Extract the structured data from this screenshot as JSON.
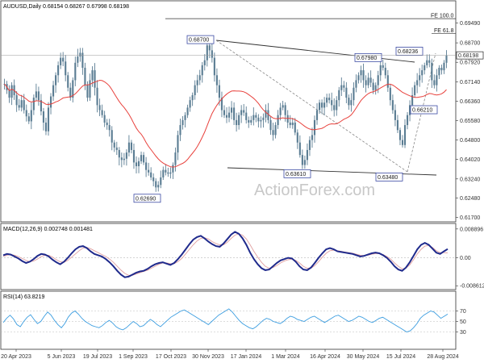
{
  "chart_data": [
    {
      "type": "candlestick",
      "title": "AUDUSD,Daily",
      "ohlc_text": "0.68154 0.68267 0.67998 0.68198",
      "current_price": 0.68198,
      "ylim": [
        0.6155,
        0.7016
      ],
      "yticks": [
        "0.69490",
        "0.68700",
        "0.67920",
        "0.67140",
        "0.66360",
        "0.65580",
        "0.64800",
        "0.64020",
        "0.63240",
        "0.62480",
        "0.61700"
      ],
      "x_labels": [
        "20 Apr 2023",
        "5 Jun 2023",
        "19 Jul 2023",
        "1 Sep 2023",
        "17 Oct 2023",
        "30 Nov 2023",
        "17 Jan 2024",
        "1 Mar 2024",
        "16 Apr 2024",
        "30 May 2024",
        "15 Jul 2024",
        "28 Aug 2024"
      ],
      "annotations": [
        {
          "text": "0.68700",
          "value": 0.687
        },
        {
          "text": "0.62690",
          "value": 0.6269
        },
        {
          "text": "0.63610",
          "value": 0.6361
        },
        {
          "text": "0.67980",
          "value": 0.6798
        },
        {
          "text": "0.63480",
          "value": 0.6348
        },
        {
          "text": "0.68236",
          "value": 0.68236
        },
        {
          "text": "0.66210",
          "value": 0.6621
        }
      ],
      "fib_levels": [
        {
          "text": "FE 100.0",
          "value": 0.6967
        },
        {
          "text": "FE 61.8",
          "value": 0.6907
        }
      ],
      "watermark": "ActionForex.com",
      "colors": {
        "candles": "#5b7d93",
        "ma": "#e8413c",
        "trend": "#333333",
        "dashed": "#888888",
        "label_border": "#3b4aa3"
      },
      "close": [
        0.6705,
        0.668,
        0.665,
        0.67,
        0.666,
        0.662,
        0.661,
        0.664,
        0.66,
        0.6575,
        0.6555,
        0.66,
        0.665,
        0.6675,
        0.664,
        0.6595,
        0.655,
        0.6515,
        0.661,
        0.6655,
        0.67,
        0.674,
        0.678,
        0.681,
        0.6795,
        0.674,
        0.669,
        0.665,
        0.672,
        0.679,
        0.6815,
        0.683,
        0.677,
        0.67,
        0.665,
        0.672,
        0.676,
        0.669,
        0.662,
        0.66,
        0.658,
        0.655,
        0.654,
        0.652,
        0.647,
        0.645,
        0.644,
        0.641,
        0.64,
        0.6405,
        0.643,
        0.647,
        0.644,
        0.639,
        0.6375,
        0.6395,
        0.642,
        0.639,
        0.636,
        0.635,
        0.633,
        0.6315,
        0.629,
        0.63,
        0.633,
        0.636,
        0.635,
        0.6345,
        0.635,
        0.638,
        0.643,
        0.65,
        0.654,
        0.656,
        0.658,
        0.661,
        0.664,
        0.666,
        0.67,
        0.672,
        0.674,
        0.678,
        0.68,
        0.686,
        0.684,
        0.681,
        0.674,
        0.67,
        0.665,
        0.66,
        0.658,
        0.657,
        0.659,
        0.661,
        0.656,
        0.654,
        0.658,
        0.66,
        0.659,
        0.656,
        0.655,
        0.656,
        0.658,
        0.657,
        0.6555,
        0.656,
        0.657,
        0.66,
        0.656,
        0.652,
        0.65,
        0.654,
        0.658,
        0.661,
        0.662,
        0.658,
        0.655,
        0.654,
        0.655,
        0.651,
        0.647,
        0.642,
        0.638,
        0.64,
        0.644,
        0.648,
        0.65,
        0.656,
        0.66,
        0.663,
        0.661,
        0.663,
        0.665,
        0.664,
        0.662,
        0.66,
        0.664,
        0.668,
        0.67,
        0.669,
        0.665,
        0.662,
        0.664,
        0.669,
        0.672,
        0.674,
        0.676,
        0.672,
        0.67,
        0.673,
        0.671,
        0.668,
        0.67,
        0.674,
        0.678,
        0.677,
        0.674,
        0.669,
        0.664,
        0.66,
        0.656,
        0.652,
        0.648,
        0.646,
        0.654,
        0.658,
        0.662,
        0.666,
        0.67,
        0.672,
        0.674,
        0.676,
        0.678,
        0.68,
        0.679,
        0.672,
        0.67,
        0.674,
        0.677,
        0.676,
        0.679,
        0.682
      ]
    },
    {
      "type": "line",
      "title": "MACD(12,26,9) 0.002748 0.001481",
      "ylim": [
        -0.0093,
        0.0096
      ],
      "yticks": [
        "0.008896",
        "0.00",
        "-0.008612"
      ],
      "series": [
        {
          "values": [
            0.0008,
            0.0012,
            0.001,
            0.0004,
            -0.0002,
            -0.001,
            -0.0016,
            -0.0012,
            -0.0004,
            0.0006,
            0.0012,
            0.001,
            0.0004,
            -0.0006,
            -0.0014,
            -0.002,
            -0.0012,
            0.0,
            0.0014,
            0.0026,
            0.0034,
            0.0036,
            0.003,
            0.002,
            0.0012,
            0.0008,
            0.0004,
            -0.0004,
            -0.0014,
            -0.0026,
            -0.004,
            -0.0052,
            -0.006,
            -0.0058,
            -0.0052,
            -0.0046,
            -0.0042,
            -0.004,
            -0.0034,
            -0.0026,
            -0.002,
            -0.0016,
            -0.0014,
            -0.0018,
            -0.0022,
            -0.0016,
            -0.0004,
            0.001,
            0.0026,
            0.0042,
            0.0056,
            0.0064,
            0.0068,
            0.006,
            0.005,
            0.0042,
            0.0036,
            0.0034,
            0.0044,
            0.0058,
            0.0072,
            0.008,
            0.0074,
            0.006,
            0.004,
            0.0016,
            -0.0004,
            -0.002,
            -0.0032,
            -0.0038,
            -0.0036,
            -0.0026,
            -0.0016,
            -0.0008,
            -0.0004,
            0.0,
            -0.0002,
            -0.0012,
            -0.0026,
            -0.0036,
            -0.0038,
            -0.003,
            -0.0016,
            0.0,
            0.0014,
            0.0026,
            0.003,
            0.0026,
            0.002,
            0.0018,
            0.0016,
            0.0014,
            0.0012,
            0.0008,
            0.0004,
            0.0006,
            0.001,
            0.0014,
            0.0016,
            0.0014,
            0.0008,
            0.0,
            -0.0012,
            -0.0026,
            -0.0036,
            -0.004,
            -0.003,
            -0.0014,
            0.0006,
            0.0026,
            0.004,
            0.0046,
            0.004,
            0.0028,
            0.0016,
            0.0012,
            0.002,
            0.0027
          ]
        },
        {
          "values": [
            0.0004,
            0.0008,
            0.001,
            0.0008,
            0.0004,
            -0.0002,
            -0.0008,
            -0.0012,
            -0.001,
            -0.0004,
            0.0004,
            0.0008,
            0.0008,
            0.0002,
            -0.0006,
            -0.0012,
            -0.0014,
            -0.0008,
            0.0002,
            0.0012,
            0.0022,
            0.003,
            0.0032,
            0.0028,
            0.0022,
            0.0016,
            0.001,
            0.0004,
            -0.0004,
            -0.0014,
            -0.0026,
            -0.0038,
            -0.0048,
            -0.0054,
            -0.0054,
            -0.005,
            -0.0046,
            -0.0042,
            -0.0038,
            -0.0032,
            -0.0026,
            -0.002,
            -0.0016,
            -0.0016,
            -0.0018,
            -0.0018,
            -0.0012,
            -0.0002,
            0.0012,
            0.0026,
            0.004,
            0.0052,
            0.006,
            0.0062,
            0.0058,
            0.005,
            0.0044,
            0.004,
            0.004,
            0.0048,
            0.006,
            0.007,
            0.0074,
            0.007,
            0.0058,
            0.004,
            0.002,
            0.0002,
            -0.0014,
            -0.0026,
            -0.0032,
            -0.003,
            -0.0024,
            -0.0016,
            -0.001,
            -0.0006,
            -0.0004,
            -0.0008,
            -0.0016,
            -0.0026,
            -0.0032,
            -0.0032,
            -0.0024,
            -0.0012,
            0.0002,
            0.0014,
            0.0022,
            0.0024,
            0.0022,
            0.002,
            0.0018,
            0.0016,
            0.0014,
            0.0011,
            0.0008,
            0.0007,
            0.0008,
            0.0011,
            0.0013,
            0.0013,
            0.001,
            0.0004,
            -0.0004,
            -0.0016,
            -0.0026,
            -0.0034,
            -0.0032,
            -0.0022,
            -0.0006,
            0.0012,
            0.0026,
            0.0036,
            0.0038,
            0.0032,
            0.0022,
            0.0016,
            0.0016,
            0.0015
          ]
        }
      ]
    },
    {
      "type": "line",
      "title": "RSI(14) 63.8219",
      "ylim": [
        0,
        100
      ],
      "yticks": [
        "70",
        "50",
        "30"
      ],
      "series": [
        {
          "values": [
            48,
            56,
            62,
            55,
            44,
            40,
            50,
            58,
            63,
            54,
            46,
            50,
            60,
            68,
            62,
            52,
            44,
            38,
            46,
            58,
            66,
            70,
            64,
            56,
            50,
            46,
            42,
            40,
            38,
            42,
            48,
            52,
            47,
            40,
            36,
            34,
            38,
            44,
            50,
            46,
            40,
            42,
            48,
            54,
            50,
            44,
            40,
            46,
            52,
            58,
            62,
            66,
            70,
            72,
            68,
            64,
            60,
            56,
            52,
            48,
            44,
            50,
            56,
            62,
            66,
            70,
            74,
            68,
            60,
            52,
            46,
            42,
            38,
            36,
            40,
            46,
            52,
            56,
            54,
            50,
            48,
            46,
            50,
            56,
            60,
            58,
            54,
            52,
            50,
            54,
            58,
            60,
            56,
            52,
            48,
            52,
            56,
            60,
            62,
            58,
            54,
            50,
            52,
            56,
            60,
            58,
            54,
            50,
            48,
            52,
            56,
            58,
            54,
            50,
            46,
            42,
            38,
            34,
            30,
            32,
            38,
            46,
            56,
            62,
            66,
            70,
            68,
            62,
            56,
            60,
            64
          ]
        }
      ]
    }
  ]
}
